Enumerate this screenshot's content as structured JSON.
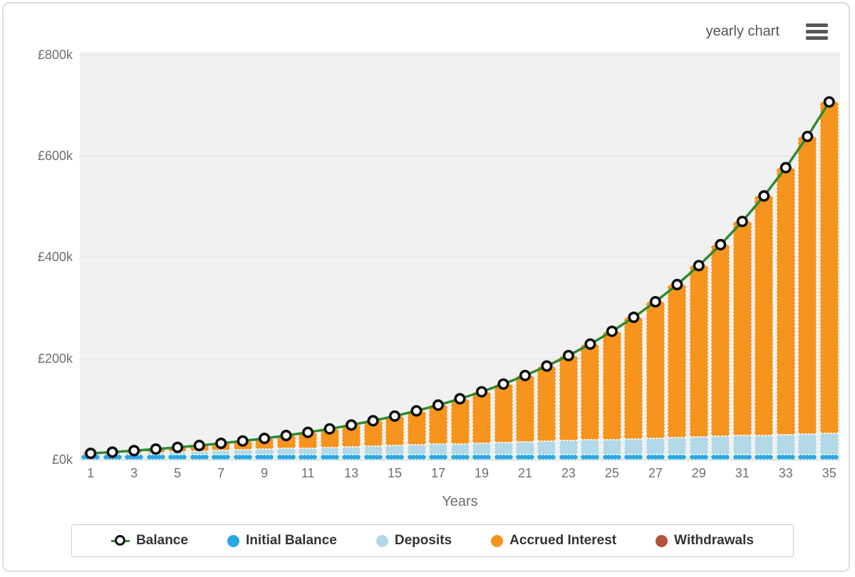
{
  "header": {
    "mode_label": "yearly chart"
  },
  "axis": {
    "x_title": "Years"
  },
  "chart_data": {
    "type": "bar",
    "subtype": "stacked-bars-with-line-overlay",
    "title": "",
    "xlabel": "Years",
    "ylabel": "",
    "currency": "£",
    "value_unit": "thousands (k)",
    "ylim": [
      0,
      800
    ],
    "yticks": [
      0,
      200,
      400,
      600,
      800
    ],
    "ytick_labels": [
      "£0k",
      "£200k",
      "£400k",
      "£600k",
      "£800k"
    ],
    "xtick_label_step": 2,
    "grid": true,
    "legend_position": "bottom",
    "categories": [
      1,
      2,
      3,
      4,
      5,
      6,
      7,
      8,
      9,
      10,
      11,
      12,
      13,
      14,
      15,
      16,
      17,
      18,
      19,
      20,
      21,
      22,
      23,
      24,
      25,
      26,
      27,
      28,
      29,
      30,
      31,
      32,
      33,
      34,
      35
    ],
    "series": [
      {
        "name": "Balance",
        "type": "line",
        "color": "#2e8b2e",
        "marker": "circle-black-ring-white-fill",
        "values": [
          12.3,
          14.8,
          17.7,
          20.8,
          24.2,
          28,
          32.2,
          36.8,
          41.9,
          47.6,
          53.8,
          60.7,
          68.3,
          76.7,
          86,
          96.2,
          107.6,
          120.1,
          133.9,
          149.2,
          166.1,
          184.7,
          205.4,
          228.1,
          253.3,
          281,
          311.7,
          345.6,
          383.1,
          424.4,
          470.1,
          520.6,
          576.4,
          638,
          706.1
        ]
      },
      {
        "name": "Initial Balance",
        "type": "bar",
        "color": "#29a8e6",
        "values": [
          10,
          10,
          10,
          10,
          10,
          10,
          10,
          10,
          10,
          10,
          10,
          10,
          10,
          10,
          10,
          10,
          10,
          10,
          10,
          10,
          10,
          10,
          10,
          10,
          10,
          10,
          10,
          10,
          10,
          10,
          10,
          10,
          10,
          10,
          10
        ]
      },
      {
        "name": "Deposits",
        "type": "bar",
        "color": "#b3d9e8",
        "values": [
          1.2,
          2.4,
          3.6,
          4.8,
          6,
          7.2,
          8.4,
          9.6,
          10.8,
          12,
          13.2,
          14.4,
          15.6,
          16.8,
          18,
          19.2,
          20.4,
          21.6,
          22.8,
          24,
          25.2,
          26.4,
          27.6,
          28.8,
          30,
          31.2,
          32.4,
          33.6,
          34.8,
          36,
          37.2,
          38.4,
          39.6,
          40.8,
          42
        ]
      },
      {
        "name": "Accrued Interest",
        "type": "bar",
        "color": "#f7941e",
        "values": [
          1.1,
          2.4,
          4.1,
          6,
          8.2,
          10.8,
          13.8,
          17.2,
          21.1,
          25.6,
          30.6,
          36.3,
          42.7,
          49.9,
          58,
          67,
          77.2,
          88.5,
          101.1,
          115.2,
          130.9,
          148.3,
          167.8,
          189.3,
          213.3,
          239.8,
          269.3,
          302,
          338.3,
          378.4,
          422.9,
          472.2,
          526.8,
          587.2,
          654.1
        ]
      },
      {
        "name": "Withdrawals",
        "type": "bar",
        "color": "#b5523c",
        "values": [
          0,
          0,
          0,
          0,
          0,
          0,
          0,
          0,
          0,
          0,
          0,
          0,
          0,
          0,
          0,
          0,
          0,
          0,
          0,
          0,
          0,
          0,
          0,
          0,
          0,
          0,
          0,
          0,
          0,
          0,
          0,
          0,
          0,
          0,
          0
        ]
      }
    ]
  },
  "legend": {
    "items": [
      {
        "label": "Balance",
        "marker": "line-ring",
        "color": "#2e8b2e"
      },
      {
        "label": "Initial Balance",
        "marker": "dot",
        "color": "#29a8e6"
      },
      {
        "label": "Deposits",
        "marker": "dot",
        "color": "#b3d9e8"
      },
      {
        "label": "Accrued Interest",
        "marker": "dot",
        "color": "#f7941e"
      },
      {
        "label": "Withdrawals",
        "marker": "dot",
        "color": "#b5523c"
      }
    ]
  }
}
